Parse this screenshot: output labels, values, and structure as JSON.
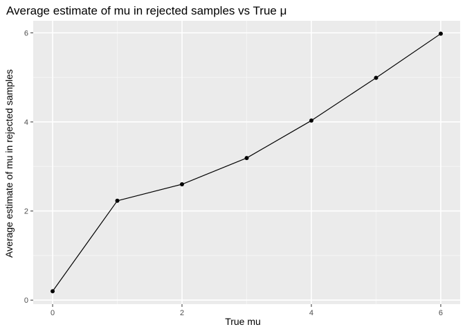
{
  "chart_data": {
    "type": "line",
    "title": "Average estimate of mu in rejected samples vs True μ",
    "xlabel": "True mu",
    "ylabel": "Average estimate of mu in rejected samples",
    "x": [
      0,
      1,
      2,
      3,
      4,
      5,
      6
    ],
    "series": [
      {
        "values": [
          0.2,
          2.23,
          2.6,
          3.19,
          4.03,
          4.99,
          5.98
        ]
      }
    ],
    "xlim": [
      -0.3,
      6.3
    ],
    "ylim": [
      -0.09,
      6.27
    ],
    "x_ticks": [
      0,
      2,
      4,
      6
    ],
    "y_ticks": [
      0,
      2,
      4,
      6
    ],
    "x_tick_labels": [
      "0",
      "2",
      "4",
      "6"
    ],
    "y_tick_labels": [
      "0",
      "2",
      "4",
      "6"
    ],
    "grid": true,
    "legend": "none",
    "colors": {
      "panel_background": "#ebebeb",
      "grid_major": "#ffffff",
      "grid_minor": "#f5f5f5",
      "line": "#000000",
      "point": "#000000",
      "tick": "#333333",
      "tick_label": "#4d4d4d"
    }
  }
}
